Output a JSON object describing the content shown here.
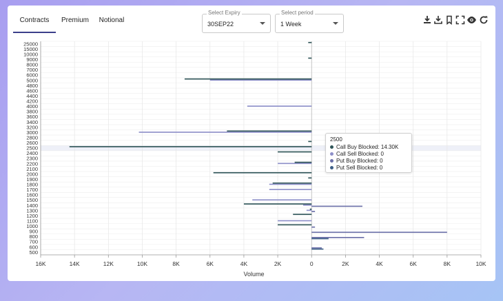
{
  "tabs": [
    "Contracts",
    "Premium",
    "Notional"
  ],
  "filters": {
    "expiry": {
      "label": "Select Expiry",
      "value": "30SEP22"
    },
    "period": {
      "label": "Select period",
      "value": "1 Week"
    }
  },
  "toolbar": {
    "icons": [
      "download-icon",
      "download-alt-icon",
      "bookmark-icon",
      "fullscreen-icon",
      "eye-icon",
      "refresh-icon"
    ]
  },
  "colors": {
    "call_buy": "#2f5558",
    "call_sell": "#8d8fc9",
    "put_buy": "#6b6fa8",
    "put_sell": "#3e5f86"
  },
  "tooltip": {
    "title": "2500",
    "rows": [
      {
        "label": "Call Buy Blocked: 14.30K",
        "color": "#2f5558"
      },
      {
        "label": "Call Sell Blocked: 0",
        "color": "#8d8fc9"
      },
      {
        "label": "Put Buy Blocked: 0",
        "color": "#6b6fa8"
      },
      {
        "label": "Put Sell Blocked: 0",
        "color": "#3e5f86"
      }
    ]
  },
  "chart_data": {
    "type": "bar",
    "orientation": "horizontal",
    "xlabel": "Volume",
    "xlim": [
      -16000,
      10000
    ],
    "xticks": [
      -16000,
      -14000,
      -12000,
      -10000,
      -8000,
      -6000,
      -4000,
      -2000,
      0,
      2000,
      4000,
      6000,
      8000,
      10000
    ],
    "xtick_labels": [
      "16K",
      "14K",
      "12K",
      "10K",
      "8K",
      "6K",
      "4K",
      "2K",
      "0",
      "2K",
      "4K",
      "6K",
      "8K",
      "10K"
    ],
    "categories": [
      "25000",
      "15000",
      "10000",
      "9000",
      "8000",
      "7000",
      "6000",
      "5000",
      "4800",
      "4600",
      "4400",
      "4200",
      "4000",
      "3800",
      "3600",
      "3400",
      "3200",
      "3000",
      "2800",
      "2600",
      "2500",
      "2400",
      "2300",
      "2200",
      "2100",
      "2000",
      "1900",
      "1800",
      "1700",
      "1600",
      "1500",
      "1400",
      "1300",
      "1200",
      "1100",
      "1000",
      "900",
      "800",
      "700",
      "600",
      "500"
    ],
    "highlight": "2500",
    "grid": true,
    "series": [
      {
        "name": "Call Buy Blocked",
        "values": [
          -200,
          0,
          0,
          -200,
          0,
          0,
          0,
          -7500,
          0,
          0,
          0,
          0,
          0,
          0,
          0,
          0,
          0,
          -5000,
          0,
          -200,
          -14300,
          -2000,
          0,
          -1000,
          0,
          -5800,
          -200,
          -2300,
          0,
          0,
          0,
          -4000,
          -100,
          -1100,
          0,
          -2000,
          0,
          0,
          0,
          0,
          0
        ]
      },
      {
        "name": "Call Sell Blocked",
        "values": [
          0,
          0,
          0,
          0,
          0,
          0,
          0,
          -6000,
          0,
          0,
          0,
          0,
          -3800,
          0,
          0,
          0,
          0,
          -10200,
          0,
          0,
          0,
          0,
          0,
          -2000,
          0,
          0,
          0,
          -2500,
          -2500,
          0,
          -3500,
          -500,
          -300,
          0,
          -2000,
          0,
          0,
          0,
          0,
          0,
          0
        ]
      },
      {
        "name": "Put Buy Blocked",
        "values": [
          0,
          0,
          0,
          0,
          0,
          0,
          0,
          0,
          0,
          0,
          0,
          0,
          0,
          0,
          0,
          0,
          0,
          0,
          0,
          0,
          0,
          0,
          0,
          0,
          0,
          0,
          0,
          0,
          0,
          0,
          0,
          3000,
          200,
          0,
          0,
          200,
          8000,
          3100,
          0,
          600,
          0
        ]
      },
      {
        "name": "Put Sell Blocked",
        "values": [
          0,
          0,
          0,
          0,
          0,
          0,
          0,
          0,
          0,
          0,
          0,
          0,
          0,
          0,
          0,
          0,
          0,
          0,
          0,
          0,
          0,
          0,
          0,
          0,
          0,
          0,
          0,
          0,
          0,
          0,
          0,
          0,
          0,
          0,
          0,
          0,
          0,
          1000,
          0,
          700,
          0
        ]
      }
    ]
  }
}
